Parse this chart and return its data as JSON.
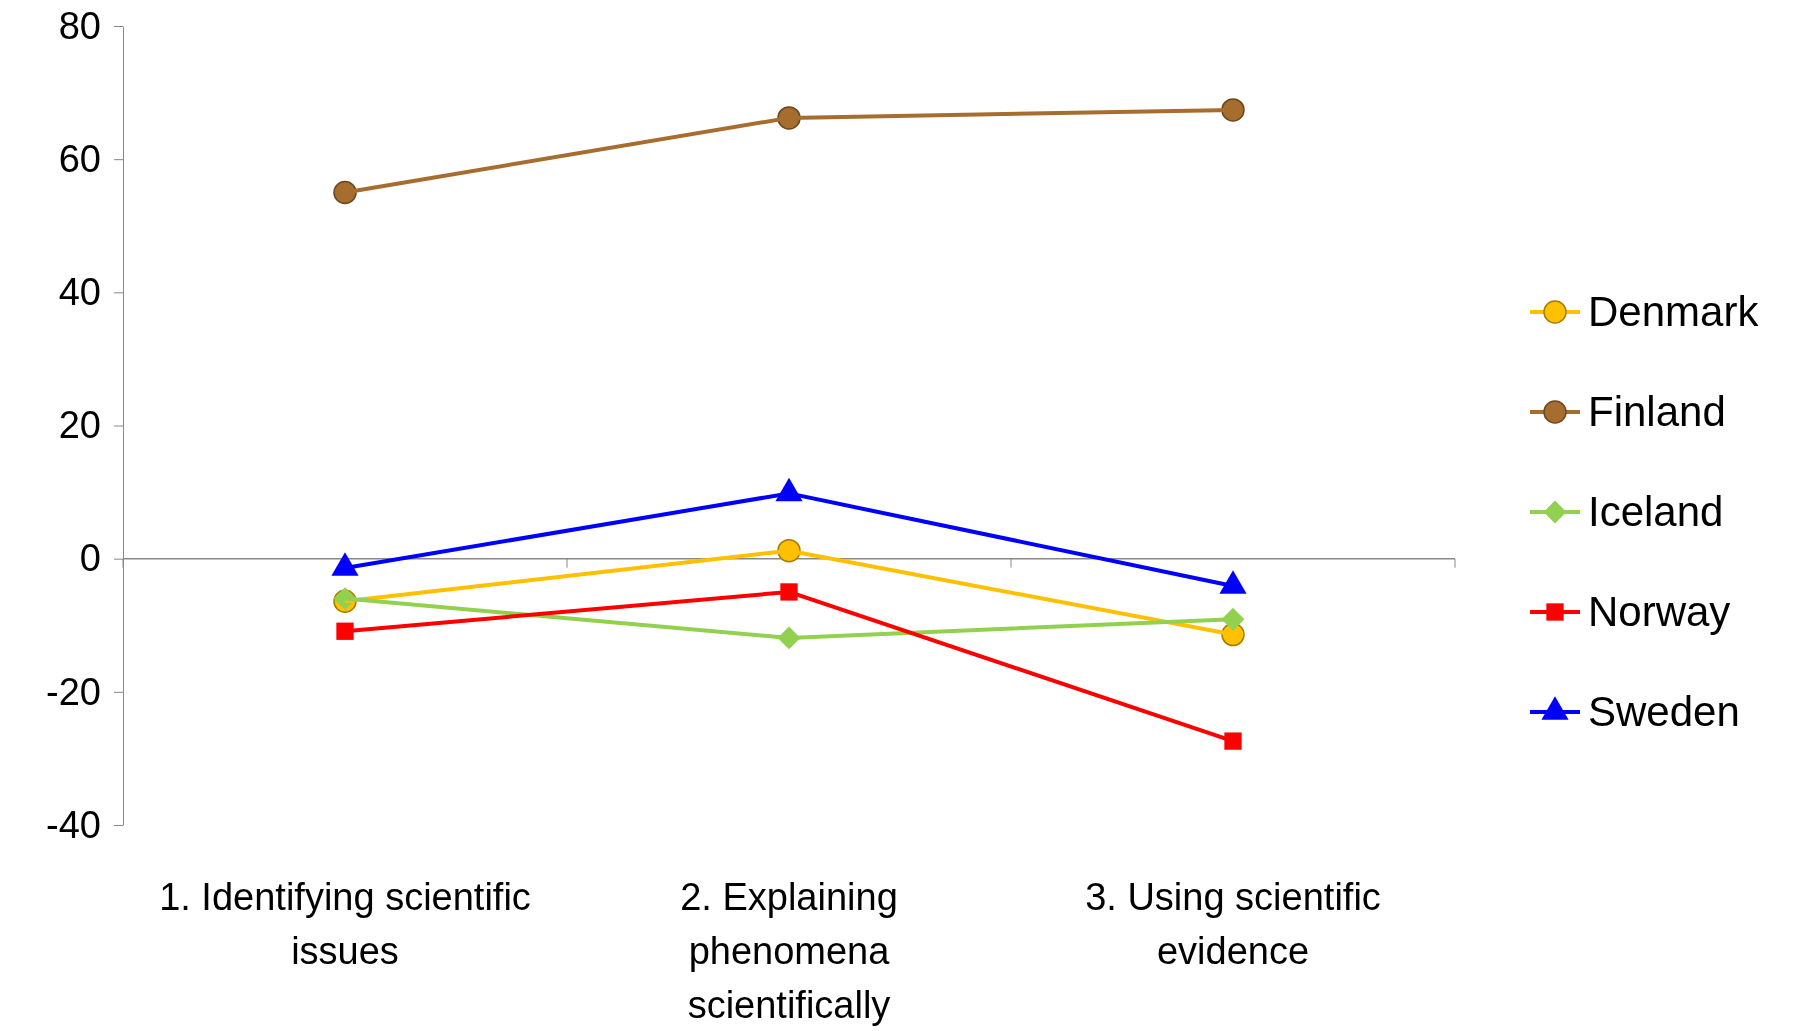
{
  "chart_data": {
    "type": "line",
    "categories": [
      "1. Identifying scientific issues",
      "2. Explaining phenomena scientifically",
      "3. Using scientific evidence"
    ],
    "ylim": [
      -40,
      80
    ],
    "yticks": [
      -40,
      -20,
      0,
      20,
      40,
      60,
      80
    ],
    "legend": "right",
    "line_style": "solid",
    "series": [
      {
        "name": "Denmark",
        "color": "#ffc000",
        "marker": "circle",
        "values": [
          -6.4,
          1.2,
          -11.4
        ]
      },
      {
        "name": "Finland",
        "color": "#a66d2e",
        "marker": "circle",
        "values": [
          55,
          66.2,
          67.4
        ]
      },
      {
        "name": "Iceland",
        "color": "#92d050",
        "marker": "diamond",
        "values": [
          -6,
          -11.9,
          -9.1
        ]
      },
      {
        "name": "Norway",
        "color": "#ff0000",
        "marker": "square",
        "values": [
          -10.9,
          -5,
          -27.4
        ]
      },
      {
        "name": "Sweden",
        "color": "#0000ff",
        "marker": "triangle",
        "values": [
          -1.4,
          9.8,
          -4.1
        ]
      }
    ]
  }
}
